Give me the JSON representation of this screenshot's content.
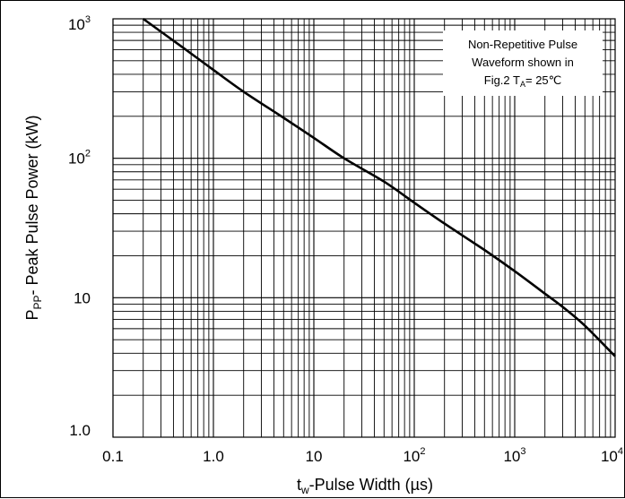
{
  "chart_data": {
    "type": "line",
    "title": "",
    "xlabel": {
      "main": "t",
      "sub": "w",
      "rest": "-Pulse Width (µs)"
    },
    "ylabel": {
      "main": "P",
      "sub": "PP",
      "rest": "- Peak Pulse Power (kW)"
    },
    "x_scale": "log",
    "y_scale": "log",
    "xlim": [
      0.1,
      10000
    ],
    "ylim": [
      1,
      1000
    ],
    "grid": true,
    "x_ticks": [
      {
        "value": 0.1,
        "label": "0.1"
      },
      {
        "value": 1,
        "label": "1.0"
      },
      {
        "value": 10,
        "label": "10"
      },
      {
        "value": 100,
        "base": "10",
        "exp": "2"
      },
      {
        "value": 1000,
        "base": "10",
        "exp": "3"
      },
      {
        "value": 10000,
        "base": "10",
        "exp": "4"
      }
    ],
    "y_ticks": [
      {
        "value": 1,
        "label": "1.0"
      },
      {
        "value": 10,
        "label": "10"
      },
      {
        "value": 100,
        "base": "10",
        "exp": "2"
      },
      {
        "value": 1000,
        "base": "10",
        "exp": "3"
      }
    ],
    "series": [
      {
        "x": [
          0.2,
          0.5,
          1,
          2,
          5,
          10,
          20,
          50,
          100,
          200,
          500,
          1000,
          2000,
          3000,
          5000,
          10000
        ],
        "y": [
          1000,
          620,
          430,
          300,
          195,
          140,
          100,
          68,
          48,
          34,
          22,
          15.5,
          10.7,
          8.6,
          6.3,
          3.8
        ]
      }
    ],
    "annotation": {
      "lines": [
        "Non-Repetitive Pulse",
        "Waveform shown in"
      ],
      "line3_prefix": "Fig.2 T",
      "line3_sub": "A",
      "line3_suffix": "= 25℃"
    },
    "colors": {
      "line": "#000000",
      "grid": "#000000",
      "background": "#ffffff"
    }
  }
}
